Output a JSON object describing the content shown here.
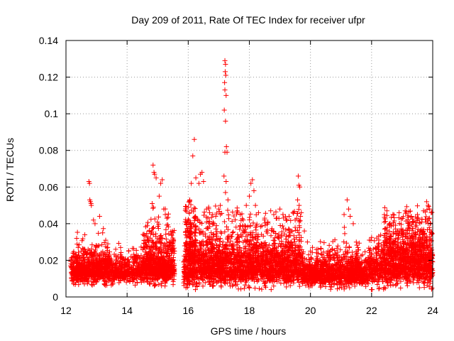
{
  "chart_data": {
    "type": "scatter",
    "title": "Day 209 of 2011, Rate Of TEC Index for receiver ufpr",
    "xlabel": "GPS time / hours",
    "ylabel": "ROTI / TECUs",
    "xlim": [
      12,
      24
    ],
    "ylim": [
      0,
      0.14
    ],
    "xticks": [
      "12",
      "14",
      "16",
      "18",
      "20",
      "22",
      "24"
    ],
    "yticks": [
      "0",
      "0.02",
      "0.04",
      "0.06",
      "0.08",
      "0.1",
      "0.12",
      "0.14"
    ],
    "grid": true,
    "marker": "+",
    "color": "#ff0000",
    "series": [
      {
        "points": [
          [
            12.75,
            0.063
          ],
          [
            12.77,
            0.062
          ],
          [
            12.78,
            0.053
          ],
          [
            12.8,
            0.052
          ],
          [
            12.82,
            0.051
          ],
          [
            12.83,
            0.05
          ],
          [
            12.35,
            0.032
          ],
          [
            12.4,
            0.027
          ],
          [
            12.5,
            0.025
          ],
          [
            12.9,
            0.042
          ],
          [
            12.95,
            0.04
          ],
          [
            13.1,
            0.044
          ],
          [
            13.2,
            0.035
          ],
          [
            13.3,
            0.031
          ],
          [
            13.4,
            0.022
          ],
          [
            13.5,
            0.018
          ],
          [
            14.85,
            0.072
          ],
          [
            14.88,
            0.068
          ],
          [
            14.9,
            0.067
          ],
          [
            14.95,
            0.065
          ],
          [
            14.82,
            0.051
          ],
          [
            14.86,
            0.049
          ],
          [
            15.05,
            0.055
          ],
          [
            15.1,
            0.062
          ],
          [
            15.15,
            0.064
          ],
          [
            15.2,
            0.048
          ],
          [
            15.25,
            0.045
          ],
          [
            15.3,
            0.043
          ],
          [
            15.45,
            0.034
          ],
          [
            15.5,
            0.029
          ],
          [
            15.55,
            0.025
          ],
          [
            16.0,
            0.049
          ],
          [
            16.05,
            0.053
          ],
          [
            16.1,
            0.062
          ],
          [
            16.15,
            0.077
          ],
          [
            16.2,
            0.086
          ],
          [
            16.25,
            0.065
          ],
          [
            16.35,
            0.062
          ],
          [
            16.4,
            0.067
          ],
          [
            16.45,
            0.068
          ],
          [
            16.5,
            0.063
          ],
          [
            16.6,
            0.048
          ],
          [
            16.7,
            0.046
          ],
          [
            16.8,
            0.045
          ],
          [
            16.9,
            0.044
          ],
          [
            17.0,
            0.048
          ],
          [
            17.05,
            0.05
          ],
          [
            17.2,
            0.129
          ],
          [
            17.22,
            0.127
          ],
          [
            17.21,
            0.123
          ],
          [
            17.23,
            0.121
          ],
          [
            17.19,
            0.117
          ],
          [
            17.2,
            0.113
          ],
          [
            17.24,
            0.11
          ],
          [
            17.18,
            0.102
          ],
          [
            17.22,
            0.096
          ],
          [
            17.25,
            0.082
          ],
          [
            17.2,
            0.079
          ],
          [
            17.27,
            0.079
          ],
          [
            17.17,
            0.066
          ],
          [
            17.24,
            0.063
          ],
          [
            17.22,
            0.057
          ],
          [
            17.3,
            0.053
          ],
          [
            17.6,
            0.047
          ],
          [
            17.7,
            0.045
          ],
          [
            17.8,
            0.042
          ],
          [
            17.9,
            0.05
          ],
          [
            18.0,
            0.055
          ],
          [
            18.05,
            0.062
          ],
          [
            18.1,
            0.064
          ],
          [
            18.15,
            0.058
          ],
          [
            18.2,
            0.05
          ],
          [
            18.3,
            0.046
          ],
          [
            18.5,
            0.043
          ],
          [
            18.7,
            0.047
          ],
          [
            18.8,
            0.045
          ],
          [
            18.9,
            0.043
          ],
          [
            19.0,
            0.048
          ],
          [
            19.1,
            0.045
          ],
          [
            19.3,
            0.044
          ],
          [
            19.5,
            0.042
          ],
          [
            19.6,
            0.066
          ],
          [
            19.62,
            0.061
          ],
          [
            19.65,
            0.06
          ],
          [
            19.58,
            0.053
          ],
          [
            19.63,
            0.05
          ],
          [
            19.7,
            0.046
          ],
          [
            19.8,
            0.036
          ],
          [
            19.9,
            0.03
          ],
          [
            20.0,
            0.025
          ],
          [
            21.2,
            0.053
          ],
          [
            21.25,
            0.048
          ],
          [
            21.1,
            0.045
          ],
          [
            21.3,
            0.044
          ],
          [
            21.4,
            0.04
          ],
          [
            22.5,
            0.047
          ],
          [
            22.7,
            0.045
          ],
          [
            22.9,
            0.046
          ],
          [
            23.1,
            0.047
          ],
          [
            23.3,
            0.044
          ],
          [
            23.5,
            0.045
          ],
          [
            23.7,
            0.047
          ],
          [
            23.8,
            0.052
          ],
          [
            23.85,
            0.05
          ],
          [
            23.9,
            0.048
          ],
          [
            23.95,
            0.046
          ]
        ]
      }
    ]
  }
}
